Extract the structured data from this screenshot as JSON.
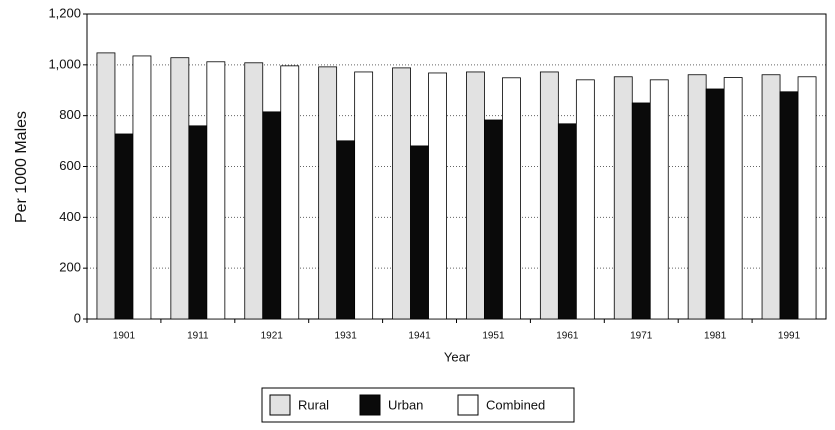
{
  "chart_data": {
    "type": "bar",
    "y_label": "Per 1000 Males",
    "x_label": "Year",
    "categories": [
      "1901",
      "1911",
      "1921",
      "1931",
      "1941",
      "1951",
      "1961",
      "1971",
      "1981",
      "1991"
    ],
    "series": [
      {
        "name": "Rural",
        "color": "#e2e2e2",
        "values": [
          1047,
          1028,
          1008,
          992,
          988,
          972,
          972,
          953,
          961,
          961
        ]
      },
      {
        "name": "Urban",
        "color": "#0a0a0a",
        "values": [
          728,
          760,
          815,
          701,
          681,
          783,
          768,
          850,
          905,
          894
        ]
      },
      {
        "name": "Combined",
        "color": "#ffffff",
        "values": [
          1035,
          1012,
          996,
          972,
          968,
          949,
          941,
          941,
          950,
          953
        ]
      }
    ],
    "ylim": [
      0,
      1200
    ],
    "yticks": [
      0,
      200,
      400,
      600,
      800,
      {
        "value": 1000,
        "label": "1,000"
      },
      {
        "value": 1200,
        "label": "1,200"
      }
    ],
    "grid": true
  }
}
